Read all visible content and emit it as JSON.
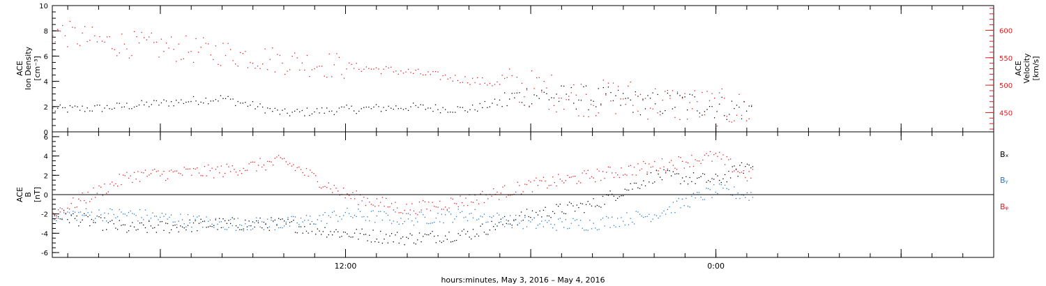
{
  "chart_data": [
    {
      "type": "scatter",
      "panel": "top",
      "ylabel_left": [
        "ACE",
        "Ion Density",
        "[cm⁻³]"
      ],
      "ylabel_right": [
        "ACE",
        "Velocity",
        "[km/s]"
      ],
      "y_left_lim": [
        0,
        10
      ],
      "y_left_ticks": [
        0,
        2,
        4,
        6,
        8,
        10
      ],
      "y_right_lim": [
        415,
        645
      ],
      "y_right_ticks": [
        450,
        500,
        550,
        600
      ],
      "x_range_hours": [
        -15.5,
        15.0
      ],
      "series": [
        {
          "axis": "left",
          "color": "#000000",
          "x_hours": [
            -15.5,
            -14.0,
            -12.0,
            -10.0,
            -8.0,
            -6.0,
            -4.0,
            -2.0,
            0.0,
            1.0,
            2.0,
            3.0,
            4.0,
            5.0,
            6.0,
            7.0
          ],
          "values": [
            1.8,
            1.9,
            2.3,
            2.7,
            1.5,
            1.8,
            2.0,
            1.8,
            3.0,
            2.8,
            2.7,
            2.5,
            2.2,
            2.4,
            2.0,
            1.8
          ]
        },
        {
          "axis": "right",
          "color": "#e31a1c",
          "x_hours": [
            -15.5,
            -14.0,
            -12.0,
            -10.0,
            -8.0,
            -6.0,
            -4.0,
            -2.0,
            0.0,
            1.0,
            2.0,
            3.0,
            4.0,
            5.0,
            6.0,
            7.0
          ],
          "values": [
            600,
            580,
            570,
            560,
            545,
            535,
            525,
            510,
            495,
            485,
            475,
            480,
            470,
            465,
            460,
            455
          ]
        }
      ]
    },
    {
      "type": "scatter",
      "panel": "bottom",
      "ylabel_left": [
        "ACE",
        "B",
        "[nT]"
      ],
      "y_left_lim": [
        -6.5,
        6.5
      ],
      "y_left_ticks": [
        -6,
        -4,
        -2,
        0,
        2,
        4,
        6
      ],
      "x_range_hours": [
        -15.5,
        15.0
      ],
      "x_ticks": [
        -12,
        -6,
        0,
        6,
        12
      ],
      "x_tick_labels": [
        "",
        "12:00",
        "",
        "0:00",
        ""
      ],
      "xlabel": "hours:minutes,  May  3, 2016 – May  4, 2016",
      "series": [
        {
          "name": "Bₓ",
          "color": "#000000",
          "x_hours": [
            -15.5,
            -13.0,
            -10.0,
            -8.0,
            -6.0,
            -4.0,
            -2.0,
            0.0,
            2.0,
            4.0,
            6.0,
            7.0
          ],
          "values": [
            -2.0,
            -3.5,
            -3.0,
            -3.0,
            -4.0,
            -4.5,
            -4.0,
            -2.0,
            -1.0,
            2.0,
            1.5,
            3.0
          ]
        },
        {
          "name": "Bᵧ",
          "color": "#1f77d0",
          "x_hours": [
            -15.5,
            -13.0,
            -10.0,
            -8.0,
            -6.0,
            -4.0,
            -2.0,
            0.0,
            2.0,
            4.0,
            6.0,
            7.0
          ],
          "values": [
            -2.0,
            -2.0,
            -3.0,
            -3.0,
            -2.0,
            -2.5,
            -2.0,
            -3.0,
            -3.0,
            -2.0,
            0.5,
            0.0
          ]
        },
        {
          "name": "Bᵩ",
          "color": "#e31a1c",
          "x_hours": [
            -15.5,
            -13.0,
            -10.0,
            -8.0,
            -6.0,
            -4.0,
            -2.0,
            0.0,
            2.0,
            4.0,
            6.0,
            7.0
          ],
          "values": [
            -2.0,
            2.0,
            2.5,
            3.5,
            0.0,
            -1.5,
            -0.5,
            1.0,
            2.0,
            3.0,
            4.0,
            2.0
          ]
        }
      ],
      "reference_line_y": 0
    }
  ]
}
